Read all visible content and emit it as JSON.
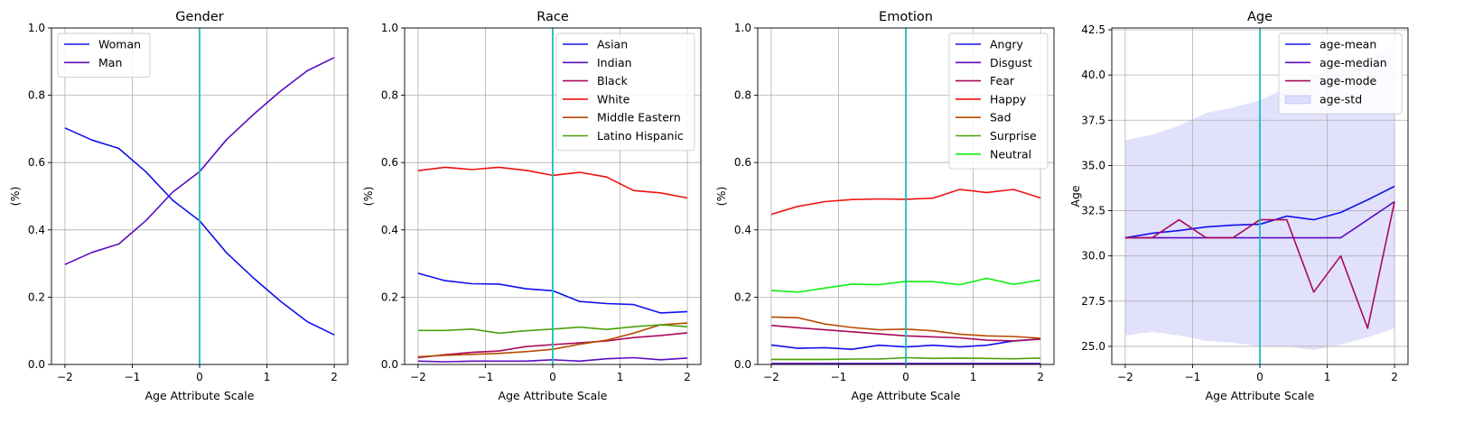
{
  "chart_data": [
    {
      "type": "line",
      "title": "Gender",
      "xlabel": "Age Attribute Scale",
      "ylabel": "(%)",
      "xlim": [
        -2.2,
        2.2
      ],
      "ylim": [
        0,
        1.0
      ],
      "xticks": [
        -2,
        -1,
        0,
        1,
        2
      ],
      "xtick_labels": [
        "−2",
        "−1",
        "0",
        "1",
        "2"
      ],
      "yticks": [
        0,
        0.2,
        0.4,
        0.6,
        0.8,
        1.0
      ],
      "ytick_labels": [
        "0.0",
        "0.2",
        "0.4",
        "0.6",
        "0.8",
        "1.0"
      ],
      "grid": true,
      "vline_x": 0,
      "vline_color": "#17bfbf",
      "legend_position": "top-left",
      "x": [
        -2,
        -1.6,
        -1.2,
        -0.8,
        -0.4,
        0,
        0.4,
        0.8,
        1.2,
        1.6,
        2
      ],
      "series": [
        {
          "name": "Woman",
          "color": "#1010ee",
          "values": [
            0.703,
            0.667,
            0.642,
            0.573,
            0.488,
            0.427,
            0.332,
            0.257,
            0.188,
            0.127,
            0.088
          ]
        },
        {
          "name": "Man",
          "color": "#5a0cbf",
          "values": [
            0.297,
            0.333,
            0.358,
            0.427,
            0.512,
            0.573,
            0.668,
            0.743,
            0.812,
            0.873,
            0.912
          ]
        }
      ]
    },
    {
      "type": "line",
      "title": "Race",
      "xlabel": "Age Attribute Scale",
      "ylabel": "(%)",
      "xlim": [
        -2.2,
        2.2
      ],
      "ylim": [
        0,
        1.0
      ],
      "xticks": [
        -2,
        -1,
        0,
        1,
        2
      ],
      "xtick_labels": [
        "−2",
        "−1",
        "0",
        "1",
        "2"
      ],
      "yticks": [
        0,
        0.2,
        0.4,
        0.6,
        0.8,
        1.0
      ],
      "ytick_labels": [
        "0.0",
        "0.2",
        "0.4",
        "0.6",
        "0.8",
        "1.0"
      ],
      "grid": true,
      "vline_x": 0,
      "vline_color": "#17bfbf",
      "legend_position": "top-right",
      "x": [
        -2,
        -1.6,
        -1.2,
        -0.8,
        -0.4,
        0,
        0.4,
        0.8,
        1.2,
        1.6,
        2
      ],
      "series": [
        {
          "name": "Asian",
          "color": "#1010ee",
          "values": [
            0.271,
            0.249,
            0.24,
            0.239,
            0.225,
            0.219,
            0.187,
            0.181,
            0.178,
            0.153,
            0.157
          ]
        },
        {
          "name": "Indian",
          "color": "#5a0cbf",
          "values": [
            0.01,
            0.008,
            0.01,
            0.01,
            0.01,
            0.014,
            0.01,
            0.017,
            0.02,
            0.014,
            0.019
          ]
        },
        {
          "name": "Black",
          "color": "#a80a5a",
          "values": [
            0.02,
            0.029,
            0.036,
            0.04,
            0.053,
            0.059,
            0.064,
            0.07,
            0.08,
            0.086,
            0.094
          ]
        },
        {
          "name": "White",
          "color": "#ee1010",
          "values": [
            0.576,
            0.586,
            0.579,
            0.586,
            0.577,
            0.562,
            0.571,
            0.557,
            0.517,
            0.51,
            0.495
          ]
        },
        {
          "name": "Middle Eastern",
          "color": "#b84a00",
          "values": [
            0.023,
            0.027,
            0.03,
            0.033,
            0.038,
            0.045,
            0.06,
            0.072,
            0.093,
            0.118,
            0.123
          ]
        },
        {
          "name": "Latino Hispanic",
          "color": "#4aa00a",
          "values": [
            0.101,
            0.101,
            0.105,
            0.093,
            0.1,
            0.105,
            0.111,
            0.104,
            0.112,
            0.118,
            0.112
          ]
        }
      ]
    },
    {
      "type": "line",
      "title": "Emotion",
      "xlabel": "Age Attribute Scale",
      "ylabel": "(%)",
      "xlim": [
        -2.2,
        2.2
      ],
      "ylim": [
        0,
        1.0
      ],
      "xticks": [
        -2,
        -1,
        0,
        1,
        2
      ],
      "xtick_labels": [
        "−2",
        "−1",
        "0",
        "1",
        "2"
      ],
      "yticks": [
        0,
        0.2,
        0.4,
        0.6,
        0.8,
        1.0
      ],
      "ytick_labels": [
        "0.0",
        "0.2",
        "0.4",
        "0.6",
        "0.8",
        "1.0"
      ],
      "grid": true,
      "vline_x": 0,
      "vline_color": "#17bfbf",
      "legend_position": "top-right",
      "x": [
        -2,
        -1.6,
        -1.2,
        -0.8,
        -0.4,
        0,
        0.4,
        0.8,
        1.2,
        1.6,
        2
      ],
      "series": [
        {
          "name": "Angry",
          "color": "#1010ee",
          "values": [
            0.058,
            0.048,
            0.05,
            0.045,
            0.057,
            0.052,
            0.057,
            0.052,
            0.057,
            0.07,
            0.076
          ]
        },
        {
          "name": "Disgust",
          "color": "#5a0cbf",
          "values": [
            0.003,
            0.003,
            0.003,
            0.003,
            0.003,
            0.003,
            0.003,
            0.003,
            0.003,
            0.003,
            0.003
          ]
        },
        {
          "name": "Fear",
          "color": "#a80a5a",
          "values": [
            0.116,
            0.109,
            0.103,
            0.097,
            0.091,
            0.085,
            0.082,
            0.079,
            0.072,
            0.07,
            0.075
          ]
        },
        {
          "name": "Happy",
          "color": "#ee1010",
          "values": [
            0.446,
            0.47,
            0.484,
            0.49,
            0.492,
            0.491,
            0.494,
            0.52,
            0.511,
            0.52,
            0.495
          ]
        },
        {
          "name": "Sad",
          "color": "#b84a00",
          "values": [
            0.141,
            0.139,
            0.12,
            0.11,
            0.103,
            0.105,
            0.1,
            0.09,
            0.085,
            0.083,
            0.078
          ]
        },
        {
          "name": "Surprise",
          "color": "#4aa00a",
          "values": [
            0.015,
            0.015,
            0.015,
            0.016,
            0.016,
            0.02,
            0.018,
            0.019,
            0.018,
            0.017,
            0.019
          ]
        },
        {
          "name": "Neutral",
          "color": "#10ee10",
          "values": [
            0.22,
            0.215,
            0.227,
            0.239,
            0.237,
            0.247,
            0.246,
            0.237,
            0.256,
            0.238,
            0.251
          ]
        }
      ]
    },
    {
      "type": "line",
      "title": "Age",
      "xlabel": "Age Attribute Scale",
      "ylabel": "Age",
      "xlim": [
        -2.2,
        2.2
      ],
      "ylim": [
        24.0,
        42.6
      ],
      "xticks": [
        -2,
        -1,
        0,
        1,
        2
      ],
      "xtick_labels": [
        "−2",
        "−1",
        "0",
        "1",
        "2"
      ],
      "yticks": [
        25.0,
        27.5,
        30.0,
        32.5,
        35.0,
        37.5,
        40.0,
        42.5
      ],
      "ytick_labels": [
        "25.0",
        "27.5",
        "30.0",
        "32.5",
        "35.0",
        "37.5",
        "40.0",
        "42.5"
      ],
      "grid": true,
      "vline_x": 0,
      "vline_color": "#17bfbf",
      "legend_position": "top-right",
      "x": [
        -2,
        -1.6,
        -1.2,
        -0.8,
        -0.4,
        0,
        0.4,
        0.8,
        1.2,
        1.6,
        2
      ],
      "series": [
        {
          "name": "age-mean",
          "color": "#1010ee",
          "values": [
            31.0,
            31.25,
            31.4,
            31.6,
            31.7,
            31.75,
            32.2,
            32.0,
            32.4,
            33.1,
            33.85
          ]
        },
        {
          "name": "age-median",
          "color": "#5a0cbf",
          "values": [
            31,
            31,
            31,
            31,
            31,
            31,
            31,
            31,
            31,
            32,
            33
          ]
        },
        {
          "name": "age-mode",
          "color": "#a80a5a",
          "values": [
            31,
            31,
            32,
            31,
            31,
            32,
            32,
            28,
            30,
            26,
            33
          ]
        }
      ],
      "band": {
        "name": "age-std",
        "color": "#6b6bee",
        "upper": [
          36.4,
          36.7,
          37.2,
          37.9,
          38.2,
          38.6,
          39.3,
          40.0,
          40.3,
          40.9,
          41.7
        ],
        "lower": [
          25.6,
          25.8,
          25.6,
          25.3,
          25.2,
          25.0,
          25.0,
          24.8,
          25.1,
          25.5,
          26.0
        ]
      }
    }
  ]
}
